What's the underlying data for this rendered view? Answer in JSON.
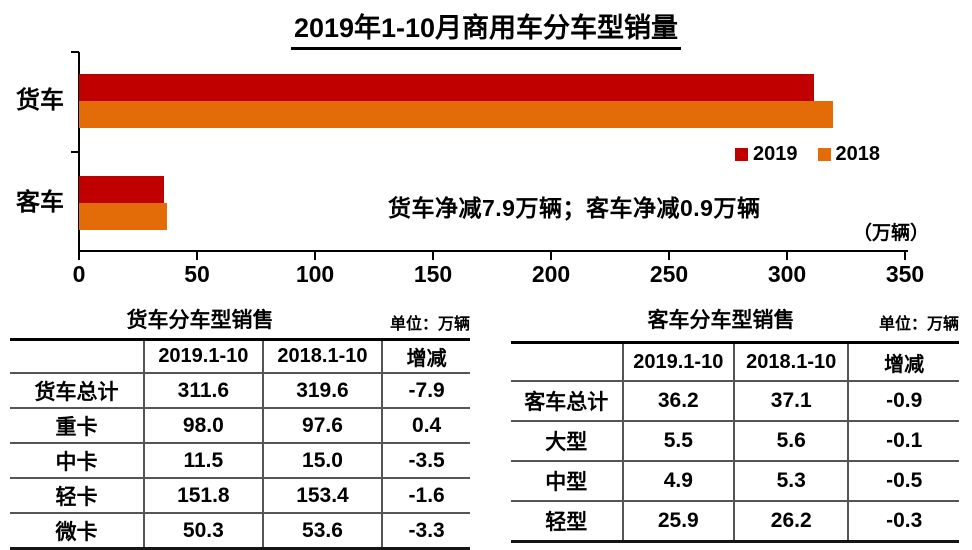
{
  "title": "2019年1-10月商用车分车型销量",
  "chart_data": {
    "type": "bar",
    "orientation": "horizontal",
    "categories": [
      "货车",
      "客车"
    ],
    "series": [
      {
        "name": "2019",
        "color": "#C00000",
        "values": [
          311.6,
          36.2
        ]
      },
      {
        "name": "2018",
        "color": "#E36C09",
        "values": [
          319.6,
          37.1
        ]
      }
    ],
    "x_ticks": [
      0,
      50,
      100,
      150,
      200,
      250,
      300,
      350
    ],
    "xlim": [
      0,
      350
    ],
    "legend_position": "right-middle",
    "grid": false,
    "annotation": "货车净减7.9万辆；客车净减0.9万辆",
    "unit_note": "（万辆）"
  },
  "tables": [
    {
      "title": "货车分车型销售",
      "unit": "单位：万辆",
      "headers": [
        "",
        "2019.1-10",
        "2018.1-10",
        "增减"
      ],
      "rows": [
        [
          "货车总计",
          "311.6",
          "319.6",
          "-7.9"
        ],
        [
          "重卡",
          "98.0",
          "97.6",
          "0.4"
        ],
        [
          "中卡",
          "11.5",
          "15.0",
          "-3.5"
        ],
        [
          "轻卡",
          "151.8",
          "153.4",
          "-1.6"
        ],
        [
          "微卡",
          "50.3",
          "53.6",
          "-3.3"
        ]
      ]
    },
    {
      "title": "客车分车型销售",
      "unit": "单位：万辆",
      "headers": [
        "",
        "2019.1-10",
        "2018.1-10",
        "增减"
      ],
      "rows": [
        [
          "客车总计",
          "36.2",
          "37.1",
          "-0.9"
        ],
        [
          "大型",
          "5.5",
          "5.6",
          "-0.1"
        ],
        [
          "中型",
          "4.9",
          "5.3",
          "-0.5"
        ],
        [
          "轻型",
          "25.9",
          "26.2",
          "-0.3"
        ]
      ]
    }
  ]
}
